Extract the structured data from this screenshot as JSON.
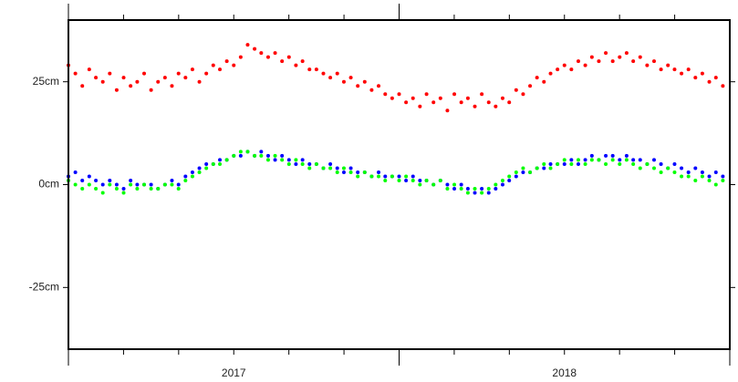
{
  "chart_data": {
    "type": "scatter",
    "x": [
      2017.0,
      2017.021,
      2017.042,
      2017.063,
      2017.083,
      2017.104,
      2017.125,
      2017.146,
      2017.167,
      2017.188,
      2017.208,
      2017.229,
      2017.25,
      2017.271,
      2017.292,
      2017.313,
      2017.333,
      2017.354,
      2017.375,
      2017.396,
      2017.417,
      2017.438,
      2017.458,
      2017.479,
      2017.5,
      2017.521,
      2017.542,
      2017.563,
      2017.583,
      2017.604,
      2017.625,
      2017.646,
      2017.667,
      2017.688,
      2017.708,
      2017.729,
      2017.75,
      2017.771,
      2017.792,
      2017.813,
      2017.833,
      2017.854,
      2017.875,
      2017.896,
      2017.917,
      2017.938,
      2017.958,
      2017.979,
      2018.0,
      2018.021,
      2018.042,
      2018.063,
      2018.083,
      2018.104,
      2018.125,
      2018.146,
      2018.167,
      2018.188,
      2018.208,
      2018.229,
      2018.25,
      2018.271,
      2018.292,
      2018.313,
      2018.333,
      2018.354,
      2018.375,
      2018.396,
      2018.417,
      2018.438,
      2018.458,
      2018.479,
      2018.5,
      2018.521,
      2018.542,
      2018.563,
      2018.583,
      2018.604,
      2018.625,
      2018.646,
      2018.667,
      2018.688,
      2018.708,
      2018.729,
      2018.75,
      2018.771,
      2018.792,
      2018.813,
      2018.833,
      2018.854,
      2018.875,
      2018.896,
      2018.917,
      2018.938,
      2018.958,
      2018.979
    ],
    "series": [
      {
        "color": "#ff0000",
        "values": [
          29,
          27,
          24,
          28,
          26,
          25,
          27,
          23,
          26,
          24,
          25,
          27,
          23,
          25,
          26,
          24,
          27,
          26,
          28,
          25,
          27,
          29,
          28,
          30,
          29,
          31,
          34,
          33,
          32,
          31,
          32,
          30,
          31,
          29,
          30,
          28,
          28,
          27,
          26,
          27,
          25,
          26,
          24,
          25,
          23,
          24,
          22,
          21,
          22,
          20,
          21,
          19,
          22,
          20,
          21,
          18,
          22,
          20,
          21,
          19,
          22,
          20,
          19,
          21,
          20,
          23,
          22,
          24,
          26,
          25,
          27,
          28,
          29,
          28,
          30,
          29,
          31,
          30,
          32,
          30,
          31,
          32,
          30,
          31,
          29,
          30,
          28,
          29,
          28,
          27,
          28,
          26,
          27,
          25,
          26,
          24
        ]
      },
      {
        "color": "#0000ff",
        "values": [
          2,
          3,
          1,
          2,
          1,
          0,
          1,
          0,
          -1,
          1,
          0,
          0,
          0,
          -1,
          0,
          1,
          0,
          2,
          3,
          4,
          5,
          5,
          6,
          6,
          7,
          7,
          8,
          7,
          8,
          7,
          6,
          7,
          6,
          5,
          6,
          5,
          5,
          4,
          5,
          4,
          3,
          4,
          3,
          3,
          2,
          3,
          2,
          2,
          2,
          1,
          2,
          1,
          1,
          0,
          1,
          0,
          -1,
          0,
          -1,
          -2,
          -1,
          -2,
          -1,
          0,
          1,
          2,
          3,
          3,
          4,
          4,
          5,
          5,
          5,
          6,
          5,
          6,
          7,
          6,
          7,
          7,
          6,
          7,
          6,
          6,
          5,
          6,
          5,
          4,
          5,
          4,
          3,
          4,
          3,
          2,
          3,
          2
        ]
      },
      {
        "color": "#00ff00",
        "values": [
          1,
          0,
          -1,
          0,
          -1,
          -2,
          0,
          -1,
          -2,
          0,
          -1,
          0,
          -1,
          -1,
          0,
          0,
          -1,
          1,
          2,
          3,
          4,
          5,
          5,
          6,
          7,
          8,
          8,
          7,
          7,
          6,
          7,
          6,
          5,
          6,
          5,
          4,
          5,
          4,
          4,
          3,
          4,
          3,
          2,
          3,
          2,
          2,
          1,
          2,
          1,
          2,
          1,
          0,
          1,
          0,
          1,
          -1,
          0,
          -1,
          -2,
          -1,
          -2,
          -1,
          0,
          1,
          2,
          3,
          4,
          3,
          4,
          5,
          4,
          5,
          6,
          5,
          6,
          5,
          6,
          6,
          5,
          6,
          5,
          6,
          5,
          4,
          5,
          4,
          3,
          4,
          3,
          2,
          2,
          1,
          2,
          1,
          0,
          1
        ]
      }
    ],
    "xlim": [
      2017,
      2019
    ],
    "xticks": [
      {
        "value": 2017,
        "label": "2017"
      },
      {
        "value": 2018,
        "label": "2018"
      }
    ],
    "ylim": [
      -40,
      40
    ],
    "yticks": [
      {
        "value": 25,
        "label": "25cm"
      },
      {
        "value": 0,
        "label": "0cm"
      },
      {
        "value": -25,
        "label": "-25cm"
      }
    ]
  }
}
